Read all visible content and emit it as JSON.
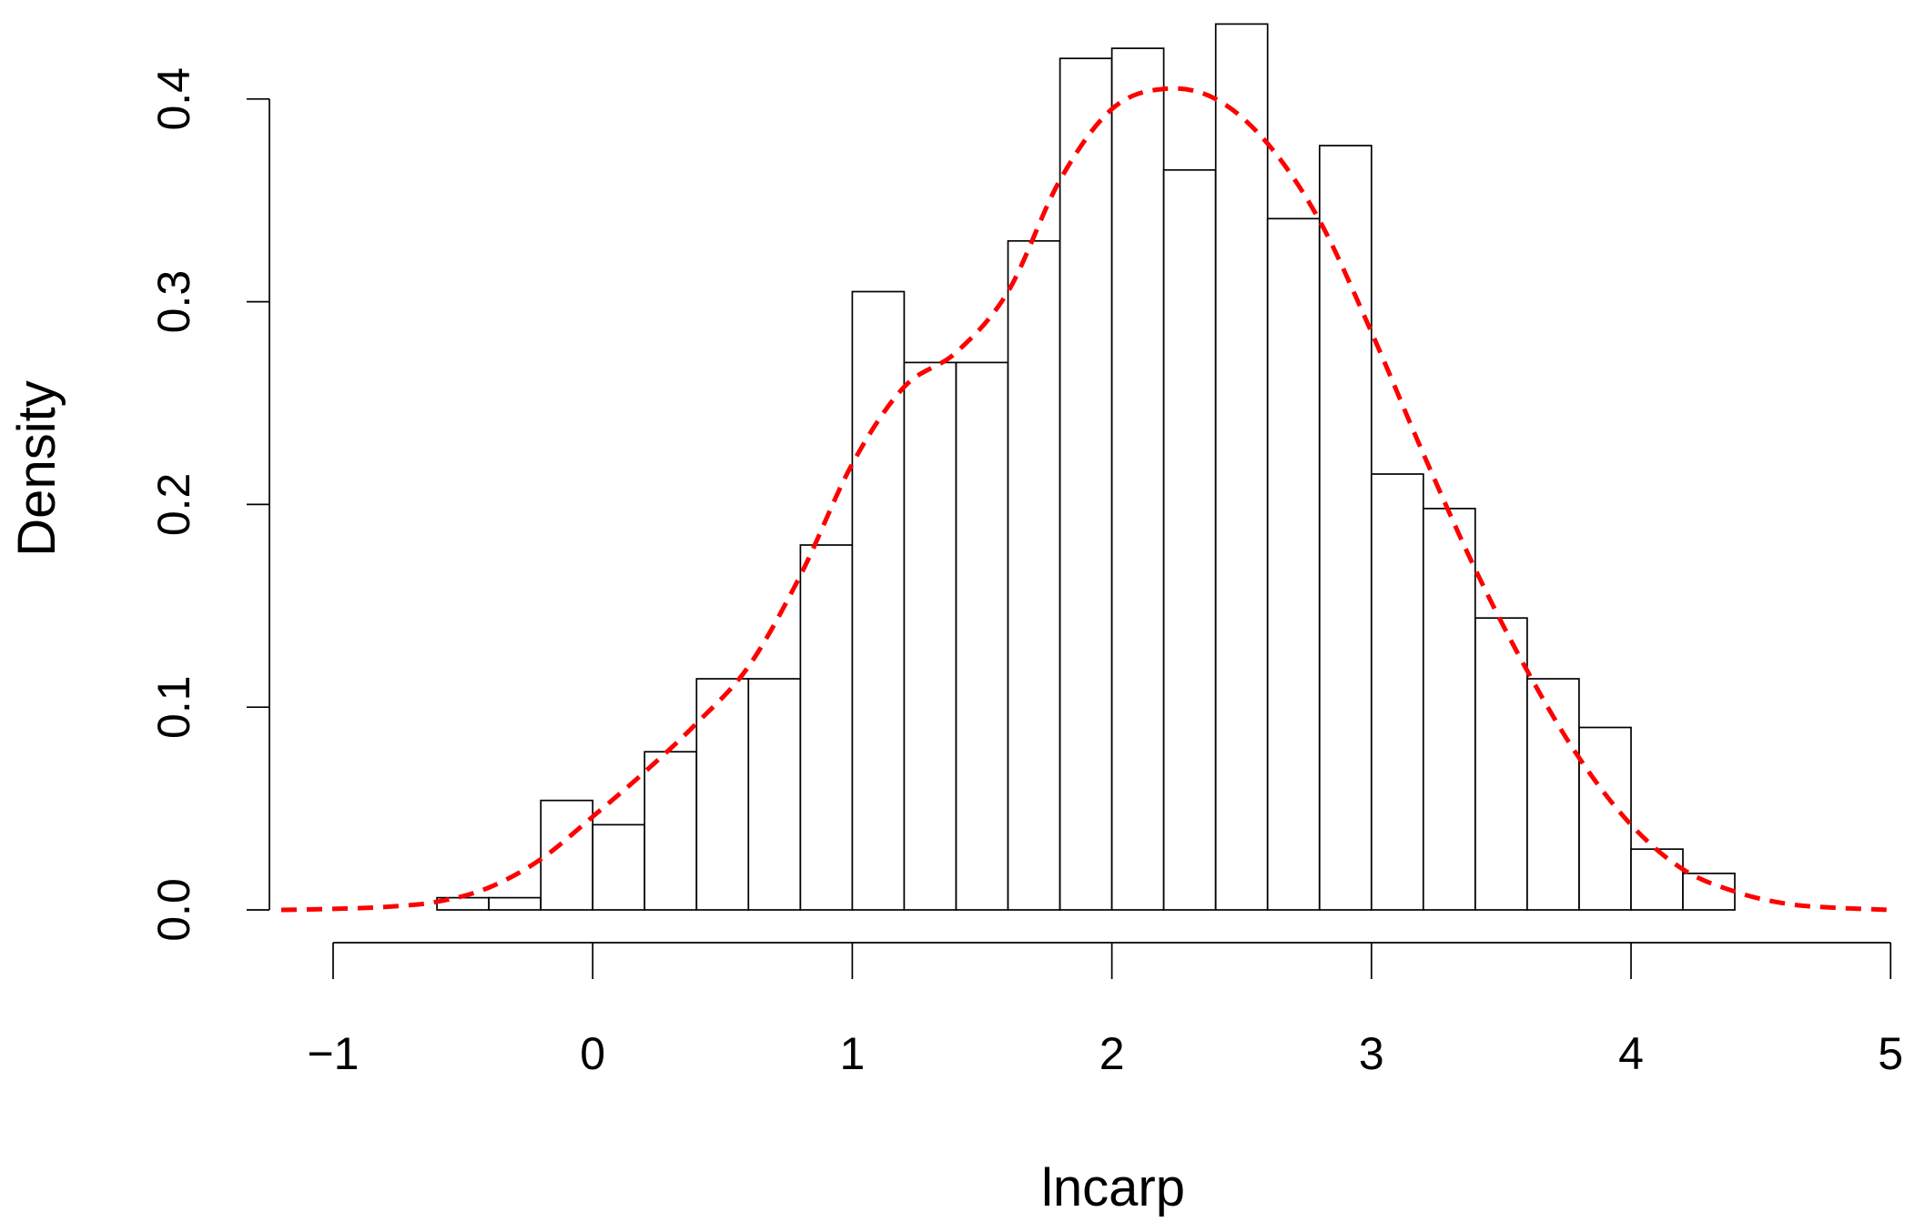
{
  "chart_data": {
    "type": "bar",
    "subtype": "histogram",
    "title": "",
    "xlabel": "lncarp",
    "ylabel": "Density",
    "xlim": [
      -1.2,
      5
    ],
    "ylim": [
      0,
      0.44
    ],
    "x_ticks": [
      -1,
      0,
      1,
      2,
      3,
      4,
      5
    ],
    "x_tick_labels": [
      "−1",
      "0",
      "1",
      "2",
      "3",
      "4",
      "5"
    ],
    "y_ticks": [
      0.0,
      0.1,
      0.2,
      0.3,
      0.4
    ],
    "y_tick_labels": [
      "0.0",
      "0.1",
      "0.2",
      "0.3",
      "0.4"
    ],
    "grid": false,
    "legend": "none",
    "bin_width": 0.2,
    "bins": [
      {
        "start": -0.6,
        "end": -0.4,
        "density": 0.006
      },
      {
        "start": -0.4,
        "end": -0.2,
        "density": 0.006
      },
      {
        "start": -0.2,
        "end": 0.0,
        "density": 0.054
      },
      {
        "start": 0.0,
        "end": 0.2,
        "density": 0.042
      },
      {
        "start": 0.2,
        "end": 0.4,
        "density": 0.078
      },
      {
        "start": 0.4,
        "end": 0.6,
        "density": 0.114
      },
      {
        "start": 0.6,
        "end": 0.8,
        "density": 0.114
      },
      {
        "start": 0.8,
        "end": 1.0,
        "density": 0.18
      },
      {
        "start": 1.0,
        "end": 1.2,
        "density": 0.305
      },
      {
        "start": 1.2,
        "end": 1.4,
        "density": 0.27
      },
      {
        "start": 1.4,
        "end": 1.6,
        "density": 0.27
      },
      {
        "start": 1.6,
        "end": 1.8,
        "density": 0.33
      },
      {
        "start": 1.8,
        "end": 2.0,
        "density": 0.42
      },
      {
        "start": 2.0,
        "end": 2.2,
        "density": 0.425
      },
      {
        "start": 2.2,
        "end": 2.4,
        "density": 0.365
      },
      {
        "start": 2.4,
        "end": 2.6,
        "density": 0.437
      },
      {
        "start": 2.6,
        "end": 2.8,
        "density": 0.341
      },
      {
        "start": 2.8,
        "end": 3.0,
        "density": 0.377
      },
      {
        "start": 3.0,
        "end": 3.2,
        "density": 0.215
      },
      {
        "start": 3.2,
        "end": 3.4,
        "density": 0.198
      },
      {
        "start": 3.4,
        "end": 3.6,
        "density": 0.144
      },
      {
        "start": 3.6,
        "end": 3.8,
        "density": 0.114
      },
      {
        "start": 3.8,
        "end": 4.0,
        "density": 0.09
      },
      {
        "start": 4.0,
        "end": 4.2,
        "density": 0.03
      },
      {
        "start": 4.2,
        "end": 4.4,
        "density": 0.018
      }
    ],
    "density_curve": {
      "style": "dashed",
      "color": "#ff0000",
      "points": [
        [
          -1.2,
          0.0
        ],
        [
          -1.0,
          0.0005
        ],
        [
          -0.8,
          0.0015
        ],
        [
          -0.6,
          0.004
        ],
        [
          -0.4,
          0.011
        ],
        [
          -0.2,
          0.025
        ],
        [
          0.0,
          0.046
        ],
        [
          0.2,
          0.068
        ],
        [
          0.4,
          0.092
        ],
        [
          0.6,
          0.12
        ],
        [
          0.8,
          0.165
        ],
        [
          1.0,
          0.22
        ],
        [
          1.2,
          0.258
        ],
        [
          1.4,
          0.275
        ],
        [
          1.6,
          0.305
        ],
        [
          1.8,
          0.36
        ],
        [
          2.0,
          0.395
        ],
        [
          2.2,
          0.405
        ],
        [
          2.4,
          0.4
        ],
        [
          2.6,
          0.378
        ],
        [
          2.8,
          0.34
        ],
        [
          3.0,
          0.285
        ],
        [
          3.2,
          0.225
        ],
        [
          3.4,
          0.168
        ],
        [
          3.6,
          0.118
        ],
        [
          3.8,
          0.075
        ],
        [
          4.0,
          0.042
        ],
        [
          4.2,
          0.02
        ],
        [
          4.4,
          0.009
        ],
        [
          4.6,
          0.003
        ],
        [
          4.8,
          0.001
        ],
        [
          5.0,
          0.0
        ]
      ]
    }
  }
}
